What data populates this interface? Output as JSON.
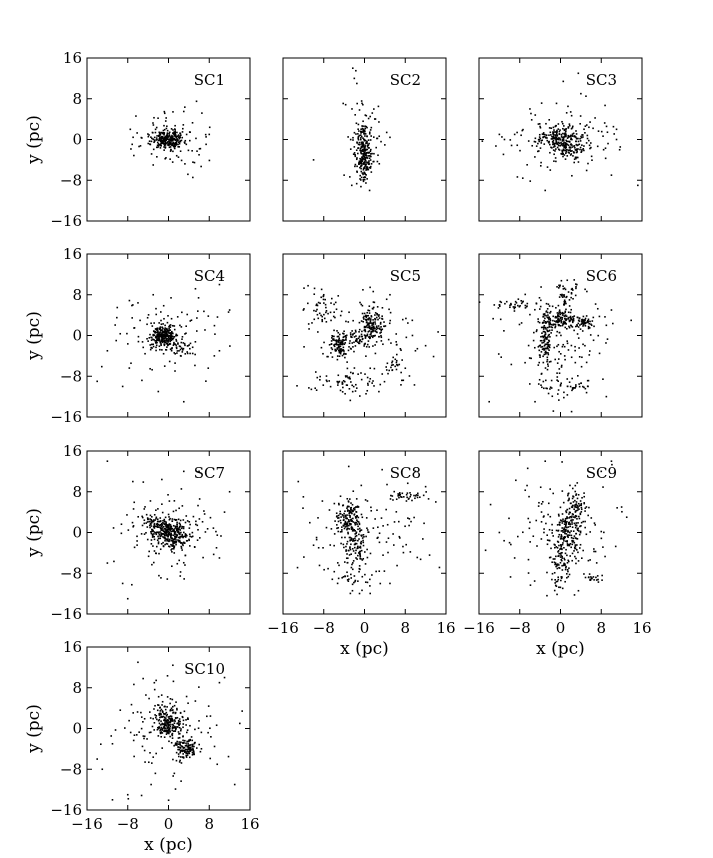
{
  "figure": {
    "xlabel": "x (pc)",
    "ylabel": "y (pc)",
    "ticks": [
      "−16",
      "−8",
      "0",
      "8",
      "16"
    ],
    "marker_color": "#000000"
  },
  "chart_data": [
    {
      "type": "scatter",
      "title": "SC1",
      "xlim": [
        -16,
        16
      ],
      "ylim": [
        -16,
        16
      ],
      "xlabel": "",
      "ylabel": "y (pc)",
      "clusters": [
        {
          "center": [
            0,
            0
          ],
          "sigma": [
            1.6,
            0.9
          ],
          "count": 240
        },
        {
          "center": [
            0,
            0
          ],
          "sigma": [
            4.0,
            2.8
          ],
          "count": 90
        }
      ],
      "outliers": [
        [
          5.5,
          7.5
        ],
        [
          8,
          1
        ],
        [
          -7.5,
          2
        ],
        [
          6,
          -3
        ],
        [
          -3,
          -5
        ],
        [
          3,
          5.5
        ]
      ]
    },
    {
      "type": "scatter",
      "title": "SC2",
      "xlim": [
        -16,
        16
      ],
      "ylim": [
        -16,
        16
      ],
      "xlabel": "",
      "ylabel": "",
      "clusters": [
        {
          "center": [
            0,
            -3
          ],
          "sigma": [
            0.8,
            2.4
          ],
          "count": 210
        },
        {
          "center": [
            0,
            0
          ],
          "sigma": [
            1.8,
            4.5
          ],
          "count": 90
        }
      ],
      "outliers": [
        [
          -2.3,
          14
        ],
        [
          -1.7,
          13.5
        ],
        [
          -2,
          12
        ],
        [
          -1.5,
          11
        ],
        [
          -10,
          -4
        ],
        [
          -2.5,
          -9
        ],
        [
          1,
          -10
        ],
        [
          -4,
          -7
        ]
      ]
    },
    {
      "type": "scatter",
      "title": "SC3",
      "xlim": [
        -16,
        16
      ],
      "ylim": [
        -16,
        16
      ],
      "xlabel": "",
      "ylabel": "",
      "clusters": [
        {
          "center": [
            0,
            0
          ],
          "sigma": [
            2.2,
            1.3
          ],
          "count": 200
        },
        {
          "center": [
            2,
            -2
          ],
          "sigma": [
            1.3,
            1.0
          ],
          "count": 60
        },
        {
          "center": [
            0,
            0
          ],
          "sigma": [
            6.0,
            3.5
          ],
          "count": 110
        }
      ],
      "outliers": [
        [
          -12,
          1
        ],
        [
          -11.5,
          0.5
        ],
        [
          -11,
          0
        ],
        [
          -9,
          1
        ],
        [
          4,
          9
        ],
        [
          5,
          8.5
        ],
        [
          3.5,
          13
        ],
        [
          11,
          2
        ],
        [
          11,
          0
        ],
        [
          -3,
          -10
        ],
        [
          10,
          -7
        ],
        [
          -6,
          6
        ]
      ]
    },
    {
      "type": "scatter",
      "title": "SC4",
      "xlim": [
        -16,
        16
      ],
      "ylim": [
        -16,
        16
      ],
      "xlabel": "",
      "ylabel": "y (pc)",
      "clusters": [
        {
          "center": [
            -1,
            0
          ],
          "sigma": [
            1.1,
            1.1
          ],
          "count": 240
        },
        {
          "center": [
            2,
            -2.5
          ],
          "sigma": [
            1.0,
            0.6
          ],
          "count": 30
        },
        {
          "center": [
            0,
            0
          ],
          "sigma": [
            5.0,
            4.0
          ],
          "count": 110
        }
      ],
      "outliers": [
        [
          -12,
          -3
        ],
        [
          -14,
          -9
        ],
        [
          -9,
          -10
        ],
        [
          10,
          10
        ],
        [
          12,
          5
        ],
        [
          9,
          -4
        ],
        [
          10,
          -3
        ],
        [
          -3,
          8
        ],
        [
          -2,
          -11
        ],
        [
          3,
          -13
        ],
        [
          -7,
          6
        ]
      ]
    },
    {
      "type": "scatter",
      "title": "SC5",
      "xlim": [
        -16,
        16
      ],
      "ylim": [
        -16,
        16
      ],
      "xlabel": "",
      "ylabel": "",
      "clusters": [
        {
          "center": [
            1.5,
            2
          ],
          "sigma": [
            1.2,
            1.6
          ],
          "count": 150
        },
        {
          "center": [
            -5,
            -2
          ],
          "sigma": [
            1.3,
            1.2
          ],
          "count": 90
        },
        {
          "center": [
            -2,
            -0.5
          ],
          "sigma": [
            2.0,
            0.8
          ],
          "count": 70
        },
        {
          "center": [
            -3,
            -9
          ],
          "sigma": [
            4.0,
            1.2
          ],
          "count": 70
        },
        {
          "center": [
            -8,
            5
          ],
          "sigma": [
            1.5,
            2.0
          ],
          "count": 40
        },
        {
          "center": [
            6,
            -6
          ],
          "sigma": [
            1.0,
            1.0
          ],
          "count": 25
        },
        {
          "center": [
            0,
            0
          ],
          "sigma": [
            6.0,
            5.0
          ],
          "count": 90
        }
      ],
      "outliers": [
        [
          -8,
          8
        ],
        [
          -8.5,
          7.5
        ],
        [
          10,
          -3
        ],
        [
          -12,
          5
        ],
        [
          5,
          8
        ],
        [
          12,
          -2
        ]
      ]
    },
    {
      "type": "scatter",
      "title": "SC6",
      "xlim": [
        -16,
        16
      ],
      "ylim": [
        -16,
        16
      ],
      "xlabel": "",
      "ylabel": "",
      "clusters": [
        {
          "center": [
            0,
            3
          ],
          "sigma": [
            1.5,
            0.8
          ],
          "count": 110
        },
        {
          "center": [
            -3,
            -1
          ],
          "sigma": [
            0.7,
            3.0
          ],
          "count": 120
        },
        {
          "center": [
            4,
            2.5
          ],
          "sigma": [
            1.5,
            0.7
          ],
          "count": 60
        },
        {
          "center": [
            0,
            -10
          ],
          "sigma": [
            2.5,
            1.0
          ],
          "count": 50
        },
        {
          "center": [
            1,
            8
          ],
          "sigma": [
            1.0,
            1.5
          ],
          "count": 50
        },
        {
          "center": [
            -8,
            6
          ],
          "sigma": [
            3.0,
            0.5
          ],
          "count": 40
        },
        {
          "center": [
            0,
            0
          ],
          "sigma": [
            6.0,
            6.0
          ],
          "count": 110
        }
      ],
      "outliers": [
        [
          -12,
          6
        ],
        [
          -13,
          6
        ],
        [
          9,
          -12
        ],
        [
          -5,
          -13
        ],
        [
          10,
          5
        ],
        [
          9,
          2
        ],
        [
          -14,
          -13
        ]
      ]
    },
    {
      "type": "scatter",
      "title": "SC7",
      "xlim": [
        -16,
        16
      ],
      "ylim": [
        -16,
        16
      ],
      "xlabel": "",
      "ylabel": "y (pc)",
      "clusters": [
        {
          "center": [
            0,
            0
          ],
          "sigma": [
            1.6,
            1.4
          ],
          "count": 230
        },
        {
          "center": [
            -3,
            2
          ],
          "sigma": [
            1.0,
            0.8
          ],
          "count": 50
        },
        {
          "center": [
            2,
            -1.5
          ],
          "sigma": [
            1.2,
            0.8
          ],
          "count": 50
        },
        {
          "center": [
            0,
            0
          ],
          "sigma": [
            5.0,
            4.0
          ],
          "count": 140
        }
      ],
      "outliers": [
        [
          -12,
          14
        ],
        [
          -8,
          -13
        ],
        [
          -12,
          -6
        ],
        [
          -9,
          -10
        ],
        [
          12,
          8
        ],
        [
          11,
          4
        ],
        [
          10,
          -5
        ],
        [
          6,
          12
        ],
        [
          3,
          12
        ],
        [
          -7,
          10
        ]
      ]
    },
    {
      "type": "scatter",
      "title": "SC8",
      "xlim": [
        -16,
        16
      ],
      "ylim": [
        -16,
        16
      ],
      "xlabel": "x (pc)",
      "ylabel": "",
      "clusters": [
        {
          "center": [
            -3,
            3
          ],
          "sigma": [
            1.2,
            1.6
          ],
          "count": 140
        },
        {
          "center": [
            -2,
            -2
          ],
          "sigma": [
            1.2,
            2.0
          ],
          "count": 80
        },
        {
          "center": [
            8,
            7
          ],
          "sigma": [
            2.5,
            0.5
          ],
          "count": 40
        },
        {
          "center": [
            -2,
            -9
          ],
          "sigma": [
            2.0,
            1.5
          ],
          "count": 40
        },
        {
          "center": [
            0,
            0
          ],
          "sigma": [
            6.0,
            5.0
          ],
          "count": 120
        }
      ],
      "outliers": [
        [
          -9,
          -3
        ],
        [
          -10,
          -2.5
        ],
        [
          12,
          9
        ],
        [
          14,
          6
        ],
        [
          10,
          12
        ],
        [
          -12,
          7
        ],
        [
          -13,
          10
        ],
        [
          5,
          -10
        ]
      ]
    },
    {
      "type": "scatter",
      "title": "SC9",
      "xlim": [
        -16,
        16
      ],
      "ylim": [
        -16,
        16
      ],
      "xlabel": "x (pc)",
      "ylabel": "",
      "clusters": [
        {
          "center": [
            1.5,
            0
          ],
          "sigma": [
            1.3,
            3.0
          ],
          "count": 170
        },
        {
          "center": [
            3,
            5
          ],
          "sigma": [
            1.0,
            2.0
          ],
          "count": 70
        },
        {
          "center": [
            0,
            -7
          ],
          "sigma": [
            1.2,
            2.5
          ],
          "count": 70
        },
        {
          "center": [
            6,
            -9
          ],
          "sigma": [
            1.0,
            0.5
          ],
          "count": 20
        },
        {
          "center": [
            0,
            0
          ],
          "sigma": [
            5.0,
            6.0
          ],
          "count": 110
        }
      ],
      "outliers": [
        [
          -12,
          0
        ],
        [
          -10,
          -2
        ],
        [
          -9,
          -5
        ],
        [
          -3,
          14
        ],
        [
          10,
          14
        ],
        [
          13,
          3
        ],
        [
          12,
          5
        ],
        [
          8,
          12
        ],
        [
          -6,
          2
        ]
      ]
    },
    {
      "type": "scatter",
      "title": "SC10",
      "xlim": [
        -16,
        16
      ],
      "ylim": [
        -16,
        16
      ],
      "xlabel": "x (pc)",
      "ylabel": "y (pc)",
      "clusters": [
        {
          "center": [
            0,
            0.5
          ],
          "sigma": [
            1.3,
            1.2
          ],
          "count": 160
        },
        {
          "center": [
            3.5,
            -4
          ],
          "sigma": [
            1.1,
            0.9
          ],
          "count": 130
        },
        {
          "center": [
            -1,
            3
          ],
          "sigma": [
            1.2,
            1.2
          ],
          "count": 40
        },
        {
          "center": [
            0,
            0
          ],
          "sigma": [
            5.5,
            5.0
          ],
          "count": 130
        }
      ],
      "outliers": [
        [
          -14,
          -6
        ],
        [
          -13,
          -8
        ],
        [
          -11,
          -14
        ],
        [
          -8,
          -13
        ],
        [
          -6,
          13
        ],
        [
          11,
          10
        ],
        [
          14,
          1
        ],
        [
          10,
          9
        ],
        [
          13,
          -11
        ],
        [
          -11,
          -3
        ]
      ]
    }
  ]
}
